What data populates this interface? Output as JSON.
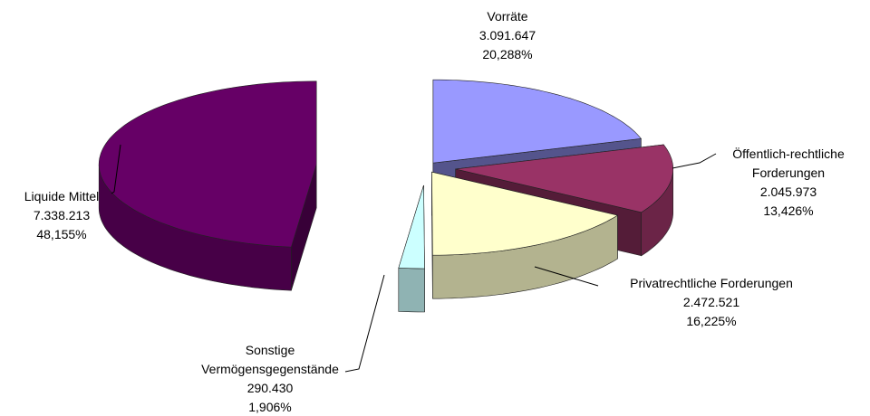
{
  "chart_data": {
    "type": "pie",
    "categories": [
      "Vorräte",
      "Öffentlich-rechtliche Forderungen",
      "Privatrechtliche Forderungen",
      "Sonstige Vermögensgegenstände",
      "Liquide Mittel"
    ],
    "values": [
      3091647,
      2045973,
      2472521,
      290430,
      7338213
    ],
    "value_labels": [
      "3.091.647",
      "2.045.973",
      "2.472.521",
      "290.430",
      "7.338.213"
    ],
    "percentages": [
      20.288,
      13.426,
      16.225,
      1.906,
      48.155
    ],
    "percentage_labels": [
      "20,288%",
      "13,426%",
      "16,225%",
      "1,906%",
      "48,155%"
    ],
    "colors": [
      "#9999ff",
      "#993366",
      "#ffffcc",
      "#ccffff",
      "#660066"
    ]
  }
}
